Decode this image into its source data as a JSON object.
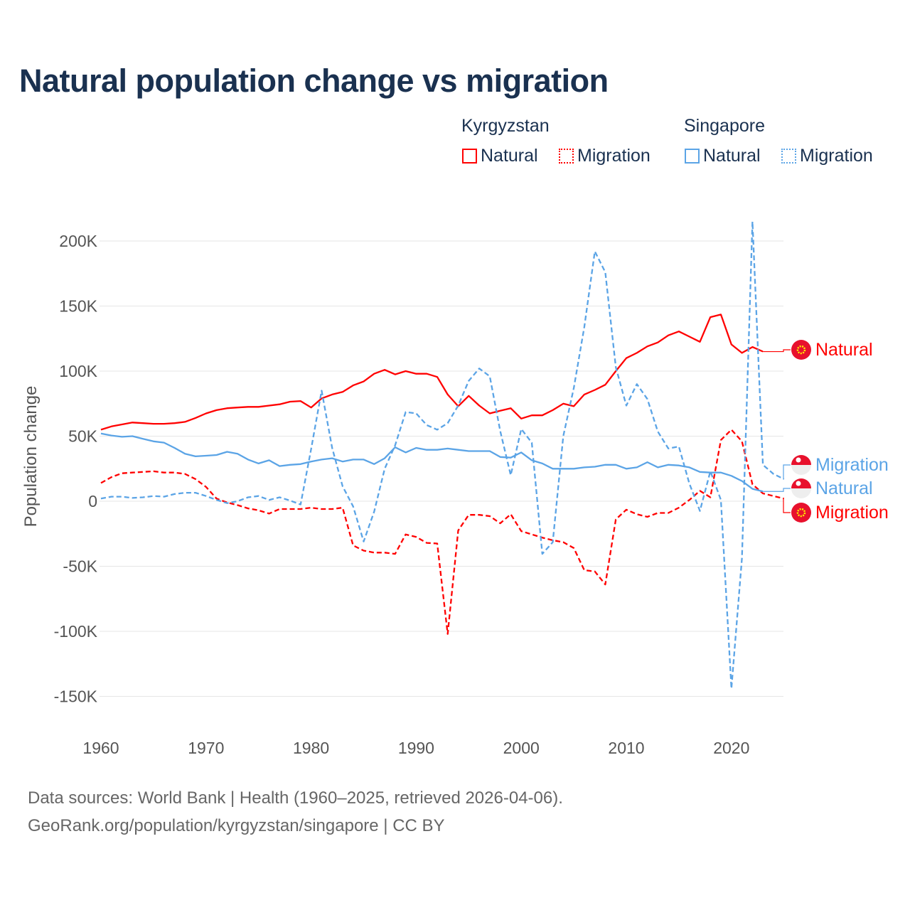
{
  "title": "Natural population change vs migration",
  "legend": {
    "groups": [
      {
        "name": "Kyrgyzstan",
        "items": [
          {
            "label": "Natural",
            "style": "solid"
          },
          {
            "label": "Migration",
            "style": "dotted"
          }
        ],
        "color": "#ff0000"
      },
      {
        "name": "Singapore",
        "items": [
          {
            "label": "Natural",
            "style": "solid"
          },
          {
            "label": "Migration",
            "style": "dotted"
          }
        ],
        "color": "#5ba4e6"
      }
    ]
  },
  "chart_data": {
    "type": "line",
    "title": "Natural population change vs migration",
    "xlabel": "",
    "ylabel": "Population change",
    "xlim": [
      1960,
      2025
    ],
    "ylim": [
      -170000,
      215000
    ],
    "x_ticks": [
      1960,
      1970,
      1980,
      1990,
      2000,
      2010,
      2020
    ],
    "x_tick_labels": [
      "1960",
      "1970",
      "1980",
      "1990",
      "2000",
      "2010",
      "2020"
    ],
    "y_ticks": [
      200000,
      150000,
      100000,
      50000,
      0,
      -50000,
      -100000,
      -150000
    ],
    "y_tick_labels": [
      "200K",
      "150K",
      "100K",
      "50K",
      "0",
      "-50K",
      "-100K",
      "-150K"
    ],
    "grid": true,
    "legend_position": "top-right",
    "x_start": 1960,
    "unit_multiplier": 1000,
    "series": [
      {
        "name": "Kyrgyzstan Natural",
        "end_label": "Natural",
        "color": "#ff0000",
        "dash": false,
        "values": [
          55,
          57.5,
          59,
          60.5,
          60,
          59.5,
          59.5,
          60,
          61,
          64,
          67.5,
          70,
          71.5,
          72,
          72.5,
          72.5,
          73.5,
          74.5,
          76.5,
          77,
          72,
          79,
          82,
          84,
          89,
          92,
          98,
          101,
          97.5,
          100,
          98,
          98,
          95.5,
          82,
          73,
          81,
          73.5,
          67.5,
          69.5,
          71.5,
          63.5,
          66,
          66,
          70,
          75,
          73,
          82,
          85.5,
          89.5,
          100,
          110,
          114,
          119,
          122,
          127.5,
          130.5,
          126.5,
          122.5,
          141.5,
          143.5,
          120.5,
          114,
          118.5,
          115
        ]
      },
      {
        "name": "Kyrgyzstan Migration",
        "end_label": "Migration",
        "color": "#ff0000",
        "dash": true,
        "values": [
          14,
          18.5,
          21.5,
          22,
          22.5,
          23,
          22,
          22,
          21,
          17,
          11,
          2,
          -1,
          -3,
          -5.5,
          -7,
          -9.5,
          -6,
          -6,
          -6,
          -5,
          -6,
          -6,
          -5,
          -34,
          -38,
          -39.5,
          -39.5,
          -40.5,
          -25.5,
          -27.5,
          -32,
          -32.5,
          -102,
          -22.5,
          -10.5,
          -10.5,
          -11.5,
          -17,
          -10,
          -23,
          -25.5,
          -28,
          -30,
          -31.5,
          -36,
          -53,
          -54,
          -64,
          -14,
          -6.5,
          -10,
          -12,
          -9,
          -9,
          -5,
          1,
          8,
          3,
          47,
          55,
          46,
          13,
          6,
          4,
          2
        ]
      },
      {
        "name": "Singapore Natural",
        "end_label": "Natural",
        "color": "#5ba4e6",
        "dash": false,
        "values": [
          52,
          50.5,
          49.5,
          50,
          48,
          46,
          45,
          41,
          36.5,
          34.5,
          35,
          35.5,
          38,
          36.5,
          32,
          29,
          31.5,
          27,
          28,
          28.5,
          30.5,
          32,
          33,
          30.5,
          32,
          32,
          28.5,
          33,
          41.5,
          37.5,
          41,
          39.5,
          39.5,
          40.5,
          39.5,
          38.5,
          38.5,
          38.5,
          34,
          33.5,
          37.5,
          31.5,
          29,
          25,
          25,
          25,
          26,
          26.5,
          28,
          28,
          25,
          26,
          30,
          26,
          28,
          27.5,
          26,
          22.5,
          22,
          22,
          19.5,
          15.5,
          9.5,
          7.5
        ]
      },
      {
        "name": "Singapore Migration",
        "end_label": "Migration",
        "color": "#5ba4e6",
        "dash": true,
        "values": [
          2,
          3.5,
          3.5,
          2.5,
          3,
          4,
          3.5,
          5.5,
          6.5,
          6.5,
          4,
          1,
          -1.5,
          0,
          3,
          4,
          1,
          3,
          0.5,
          -2.5,
          40,
          85,
          41,
          11.5,
          -4,
          -31,
          -8,
          25,
          43,
          68.5,
          67.5,
          58.5,
          55,
          60,
          73.5,
          92.5,
          102,
          96,
          54,
          20,
          55.5,
          45,
          -40.5,
          -31.5,
          50,
          87,
          134,
          192,
          176,
          103,
          73.5,
          90,
          78.5,
          53.5,
          40.5,
          42,
          13.5,
          -7.5,
          23,
          1,
          -144,
          -44,
          215,
          28,
          21,
          17
        ]
      }
    ]
  },
  "footer": {
    "line1": "Data sources: World Bank | Health (1960–2025, retrieved 2026-04-06).",
    "line2": "GeoRank.org/population/kyrgyzstan/singapore | CC BY"
  }
}
